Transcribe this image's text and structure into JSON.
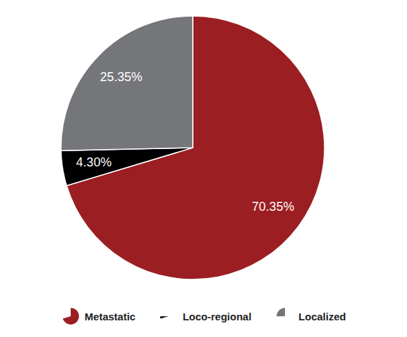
{
  "chart_data": {
    "type": "pie",
    "categories": [
      "Metastatic",
      "Loco-regional",
      "Localized"
    ],
    "values": [
      70.35,
      4.3,
      25.35
    ],
    "value_labels": [
      "70.35%",
      "4.30%",
      "25.35%"
    ],
    "colors": [
      "#9b1e22",
      "#000000",
      "#75767a"
    ],
    "data_labels": true,
    "legend": "bottom"
  }
}
